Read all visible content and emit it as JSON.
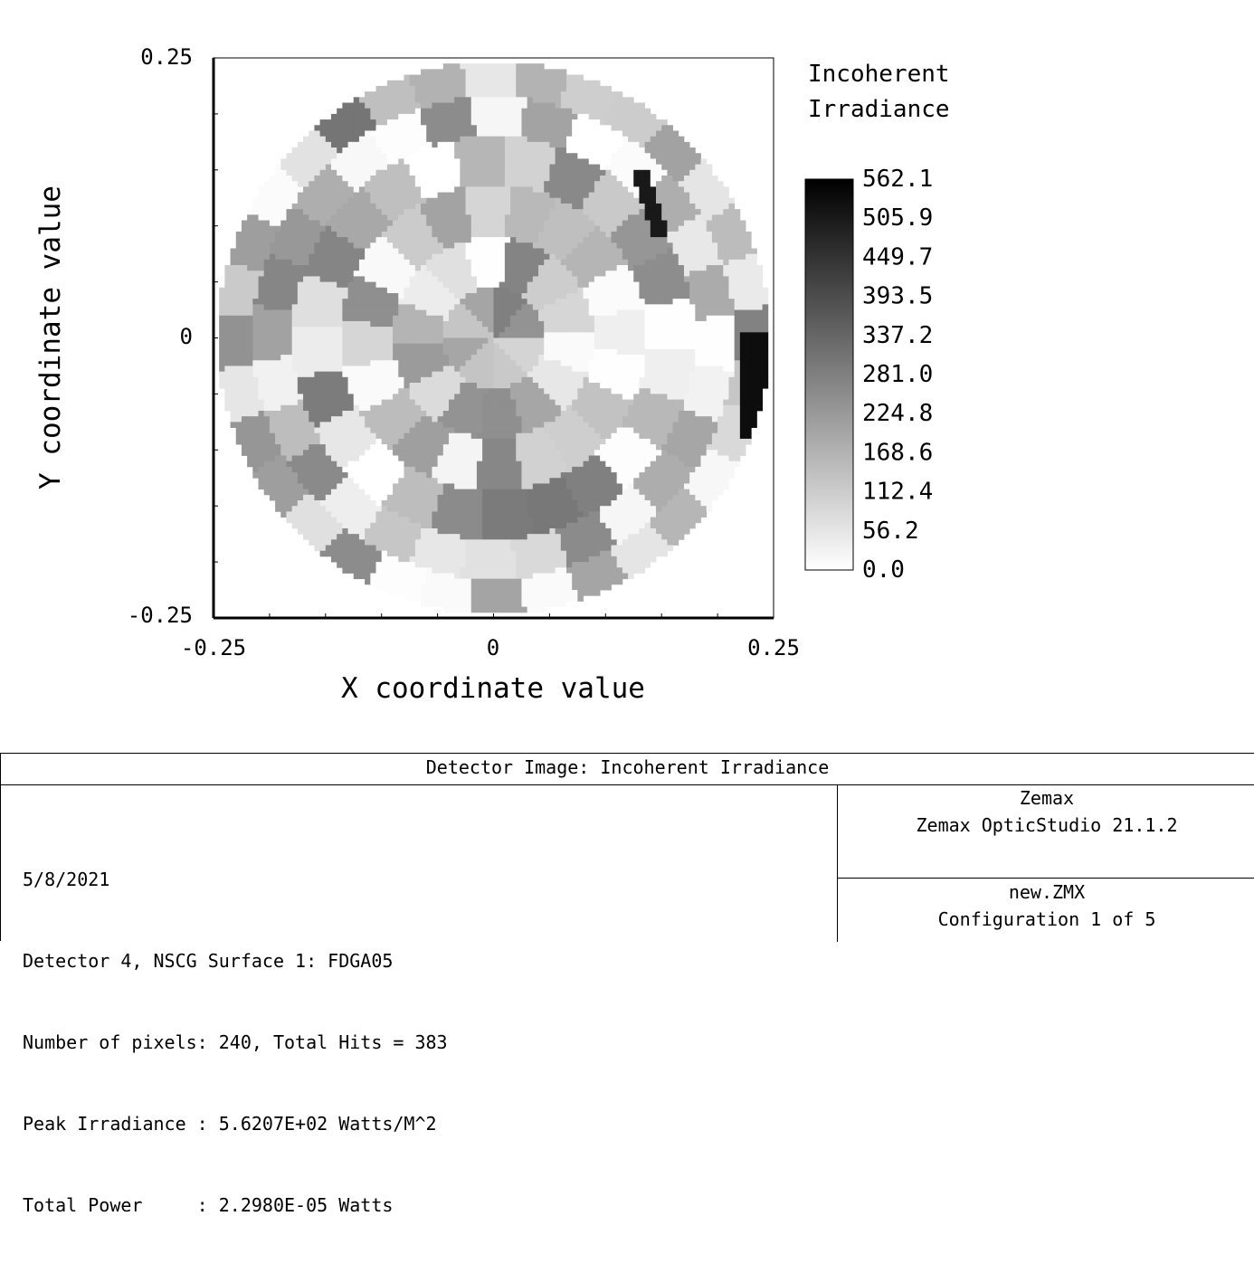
{
  "chart_data": {
    "type": "heatmap",
    "title": "Detector Image: Incoherent Irradiance",
    "xlabel": "X coordinate value",
    "ylabel": "Y coordinate value",
    "xlim": [
      -0.25,
      0.25
    ],
    "ylim": [
      -0.25,
      0.25
    ],
    "x_ticks": [
      "-0.25",
      "0",
      "0.25"
    ],
    "y_ticks": [
      "-0.25",
      "0",
      "0.25"
    ],
    "colorbar": {
      "title_lines": [
        "Incoherent",
        "Irradiance"
      ],
      "range": [
        0.0,
        562.1
      ],
      "tick_labels": [
        "562.1",
        "505.9",
        "449.7",
        "393.5",
        "337.2",
        "281.0",
        "224.8",
        "168.6",
        "112.4",
        "56.2",
        "0.0"
      ],
      "colormap": "grayscale (white = 0, black = max)"
    },
    "grid": false,
    "pattern": "circular aperture of radius ~0.25 divided into concentric rings of angular facets with varying irradiance; peak ~562 near x 0.24, y -0.02"
  },
  "info": {
    "title": "Detector Image: Incoherent Irradiance",
    "lines": [
      "5/8/2021",
      "Detector 4, NSCG Surface 1: FDGA05",
      "Number of pixels: 240, Total Hits = 383",
      "Peak Irradiance : 5.6207E+02 Watts/M^2",
      "Total Power     : 2.2980E-05 Watts"
    ],
    "company": "Zemax",
    "software": "Zemax OpticStudio 21.1.2",
    "file": "new.ZMX",
    "configuration": "Configuration 1 of 5"
  },
  "colors": {
    "background": "#ffffff",
    "axis": "#000000"
  }
}
